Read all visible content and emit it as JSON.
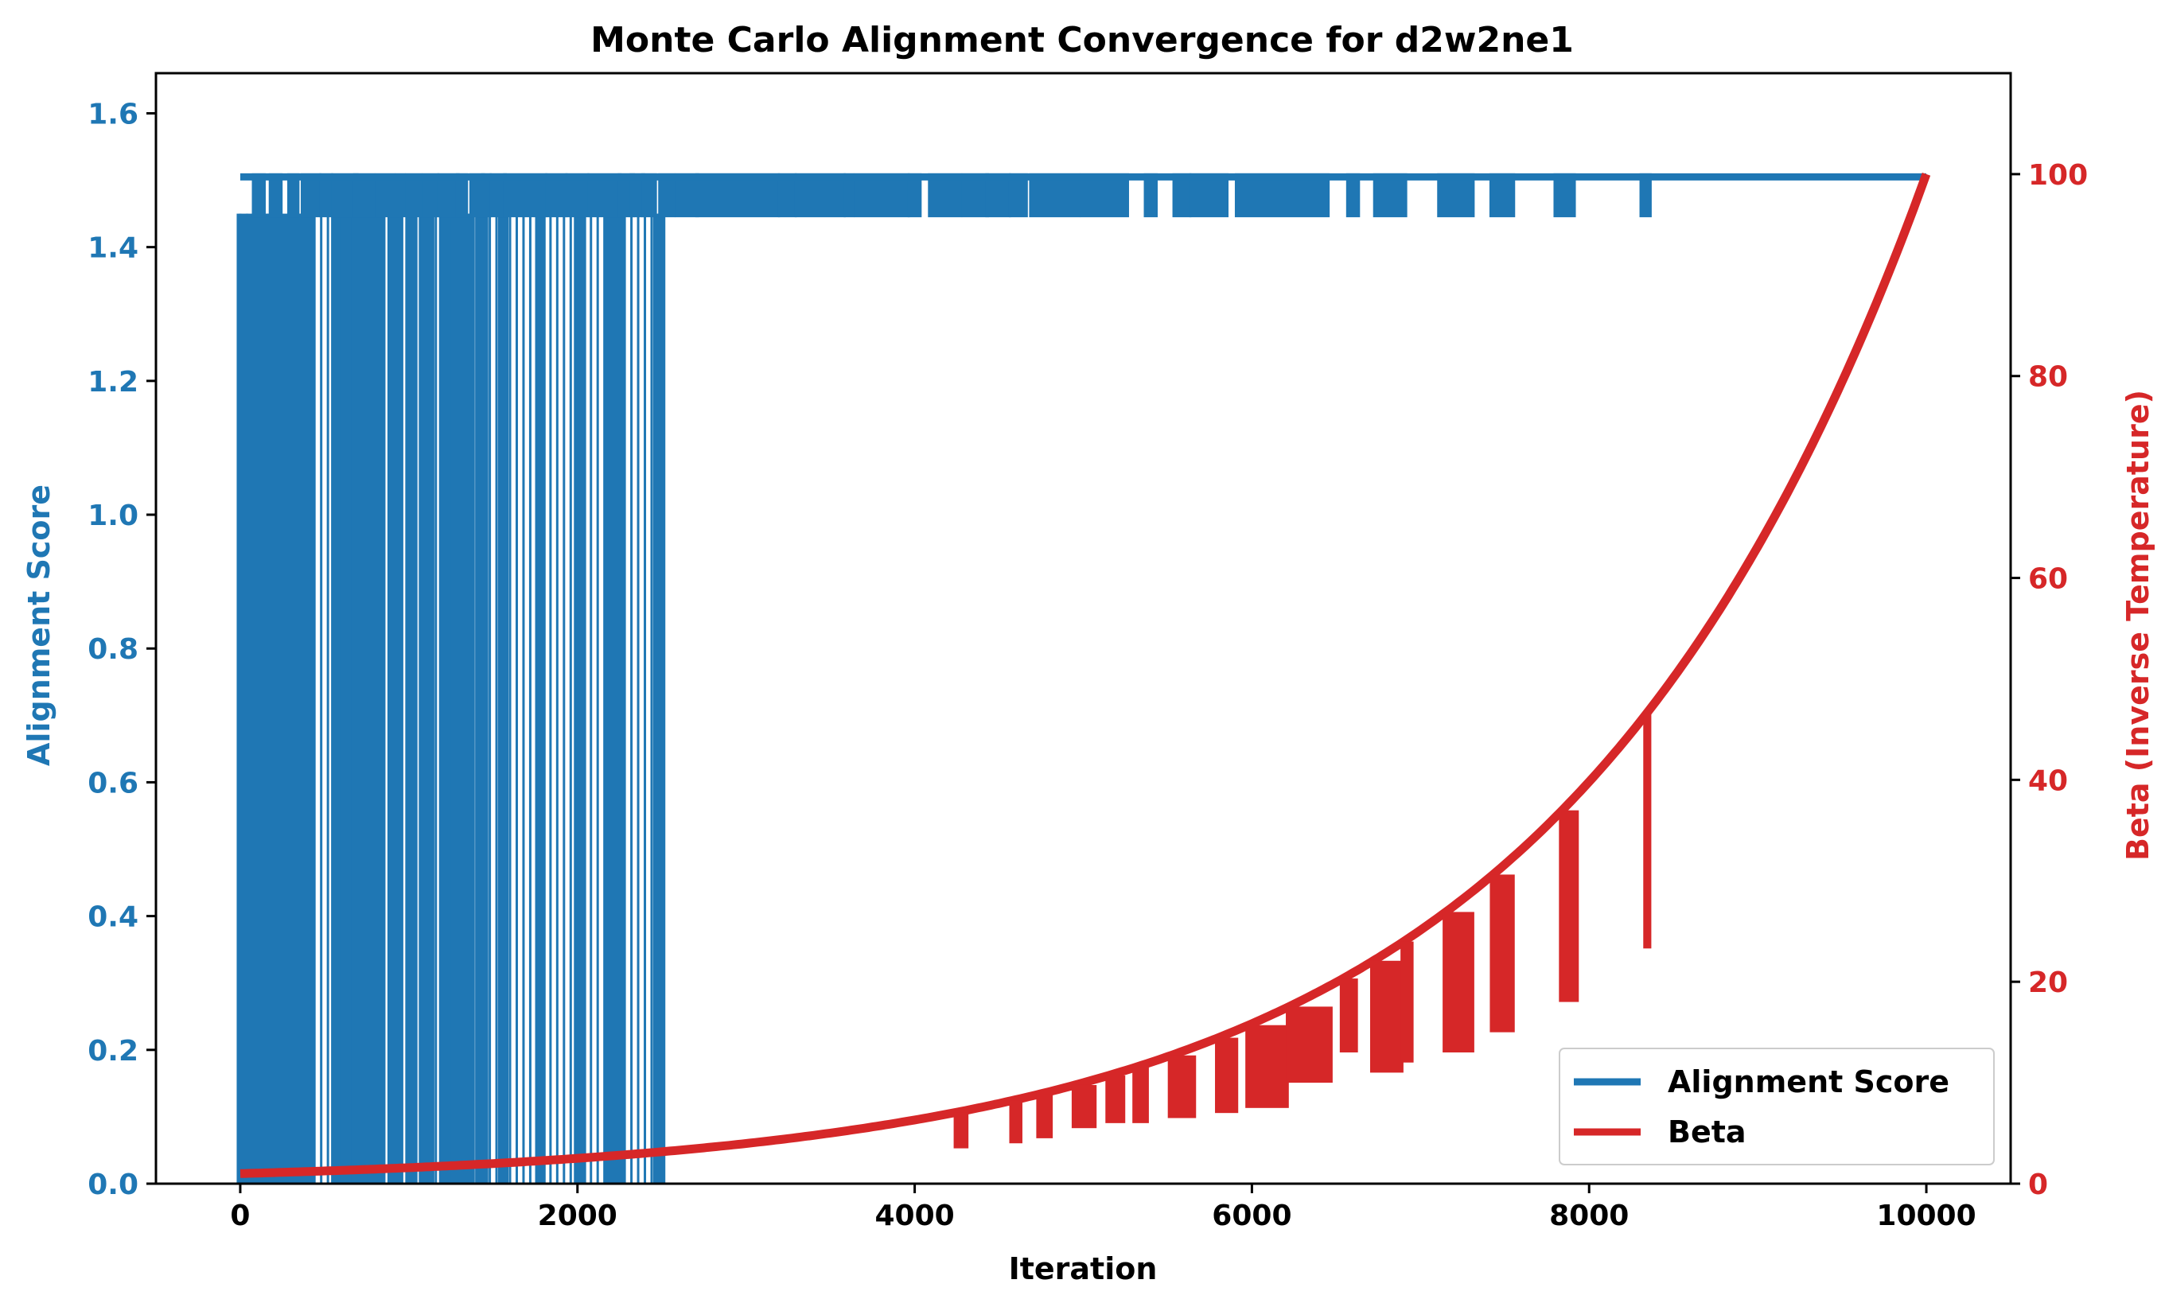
{
  "chart_data": {
    "type": "line",
    "title": "Monte Carlo Alignment Convergence for d2w2ne1",
    "xlabel": "Iteration",
    "ylabel": "Alignment Score",
    "y2label": "Beta (Inverse Temperature)",
    "xlim": [
      -500,
      10500
    ],
    "ylim": [
      0,
      1.66
    ],
    "y2lim": [
      0,
      110
    ],
    "xticks": [
      0,
      2000,
      4000,
      6000,
      8000,
      10000
    ],
    "xtick_labels": [
      "0",
      "2000",
      "4000",
      "6000",
      "8000",
      "10000"
    ],
    "yticks": [
      0.0,
      0.2,
      0.4,
      0.6,
      0.8,
      1.0,
      1.2,
      1.4,
      1.6
    ],
    "ytick_labels": [
      "0.0",
      "0.2",
      "0.4",
      "0.6",
      "0.8",
      "1.0",
      "1.2",
      "1.4",
      "1.6"
    ],
    "y2ticks": [
      0,
      20,
      40,
      60,
      80,
      100
    ],
    "y2tick_labels": [
      "0",
      "20",
      "40",
      "60",
      "80",
      "100"
    ],
    "grid": false,
    "legend_position": "bottom-right",
    "colors": {
      "score": "#1f77b4",
      "beta": "#d62728",
      "axis": "#000000"
    },
    "series": [
      {
        "name": "Alignment Score",
        "axis": "left",
        "color": "#1f77b4",
        "plateau": 1.505,
        "dip": 1.45,
        "low": 0.0,
        "x_end": 10000,
        "full_drops_to_zero": [
          [
            0,
            420
          ],
          [
            560,
            600
          ],
          [
            620,
            660
          ],
          [
            680,
            840
          ],
          [
            900,
            940
          ],
          [
            1000,
            1030
          ],
          [
            1080,
            1130
          ],
          [
            1200,
            1230
          ],
          [
            1270,
            1370
          ],
          [
            1420,
            1450
          ],
          [
            1550,
            1570
          ],
          [
            1770,
            1790
          ],
          [
            2000,
            2030
          ],
          [
            2180,
            2230
          ],
          [
            2240,
            2260
          ],
          [
            2470,
            2500
          ]
        ],
        "dips_to_1_45": [
          [
            90,
            130
          ],
          [
            190,
            230
          ],
          [
            300,
            330
          ],
          [
            380,
            460
          ],
          [
            490,
            530
          ],
          [
            560,
            680
          ],
          [
            690,
            780
          ],
          [
            820,
            900
          ],
          [
            940,
            960
          ],
          [
            1000,
            1060
          ],
          [
            1100,
            1160
          ],
          [
            1190,
            1280
          ],
          [
            1300,
            1330
          ],
          [
            1380,
            1430
          ],
          [
            1450,
            1470
          ],
          [
            1500,
            1560
          ],
          [
            1580,
            1800
          ],
          [
            1830,
            1920
          ],
          [
            1950,
            2050
          ],
          [
            2080,
            2240
          ],
          [
            2260,
            2320
          ],
          [
            2330,
            2380
          ],
          [
            2400,
            2450
          ],
          [
            2500,
            2560
          ],
          [
            2600,
            2700
          ],
          [
            2720,
            3180
          ],
          [
            3210,
            3280
          ],
          [
            3310,
            3570
          ],
          [
            3600,
            3620
          ],
          [
            3660,
            3950
          ],
          [
            3980,
            4020
          ],
          [
            4100,
            4260
          ],
          [
            4300,
            4420
          ],
          [
            4440,
            4550
          ],
          [
            4580,
            4650
          ],
          [
            4700,
            4960
          ],
          [
            5000,
            5250
          ],
          [
            5380,
            5420
          ],
          [
            5550,
            5620
          ],
          [
            5650,
            5840
          ],
          [
            5920,
            6440
          ],
          [
            6580,
            6620
          ],
          [
            6740,
            6900
          ],
          [
            7120,
            7300
          ],
          [
            7430,
            7540
          ],
          [
            7810,
            7900
          ],
          [
            8320,
            8350
          ]
        ],
        "hatched_regions": [
          [
            0,
            2500
          ]
        ]
      },
      {
        "name": "Beta",
        "axis": "right",
        "color": "#d62728",
        "start": 1.0,
        "end": 100.0,
        "curve": "geometric",
        "drops_down_to": [
          [
            4250,
            4300,
            3.5
          ],
          [
            4580,
            4620,
            4.0
          ],
          [
            4740,
            4800,
            4.5
          ],
          [
            4950,
            5060,
            5.5
          ],
          [
            5150,
            5230,
            6.0
          ],
          [
            5310,
            5370,
            6.0
          ],
          [
            5520,
            5650,
            6.5
          ],
          [
            5800,
            5900,
            7.0
          ],
          [
            5980,
            6200,
            7.5
          ],
          [
            6220,
            6460,
            10.0
          ],
          [
            6540,
            6610,
            13.0
          ],
          [
            6720,
            6880,
            11.0
          ],
          [
            6900,
            6940,
            12.0
          ],
          [
            7150,
            7300,
            13.0
          ],
          [
            7430,
            7540,
            15.0
          ],
          [
            7840,
            7920,
            18.0
          ],
          [
            8340,
            8350,
            23.3
          ]
        ]
      }
    ]
  }
}
